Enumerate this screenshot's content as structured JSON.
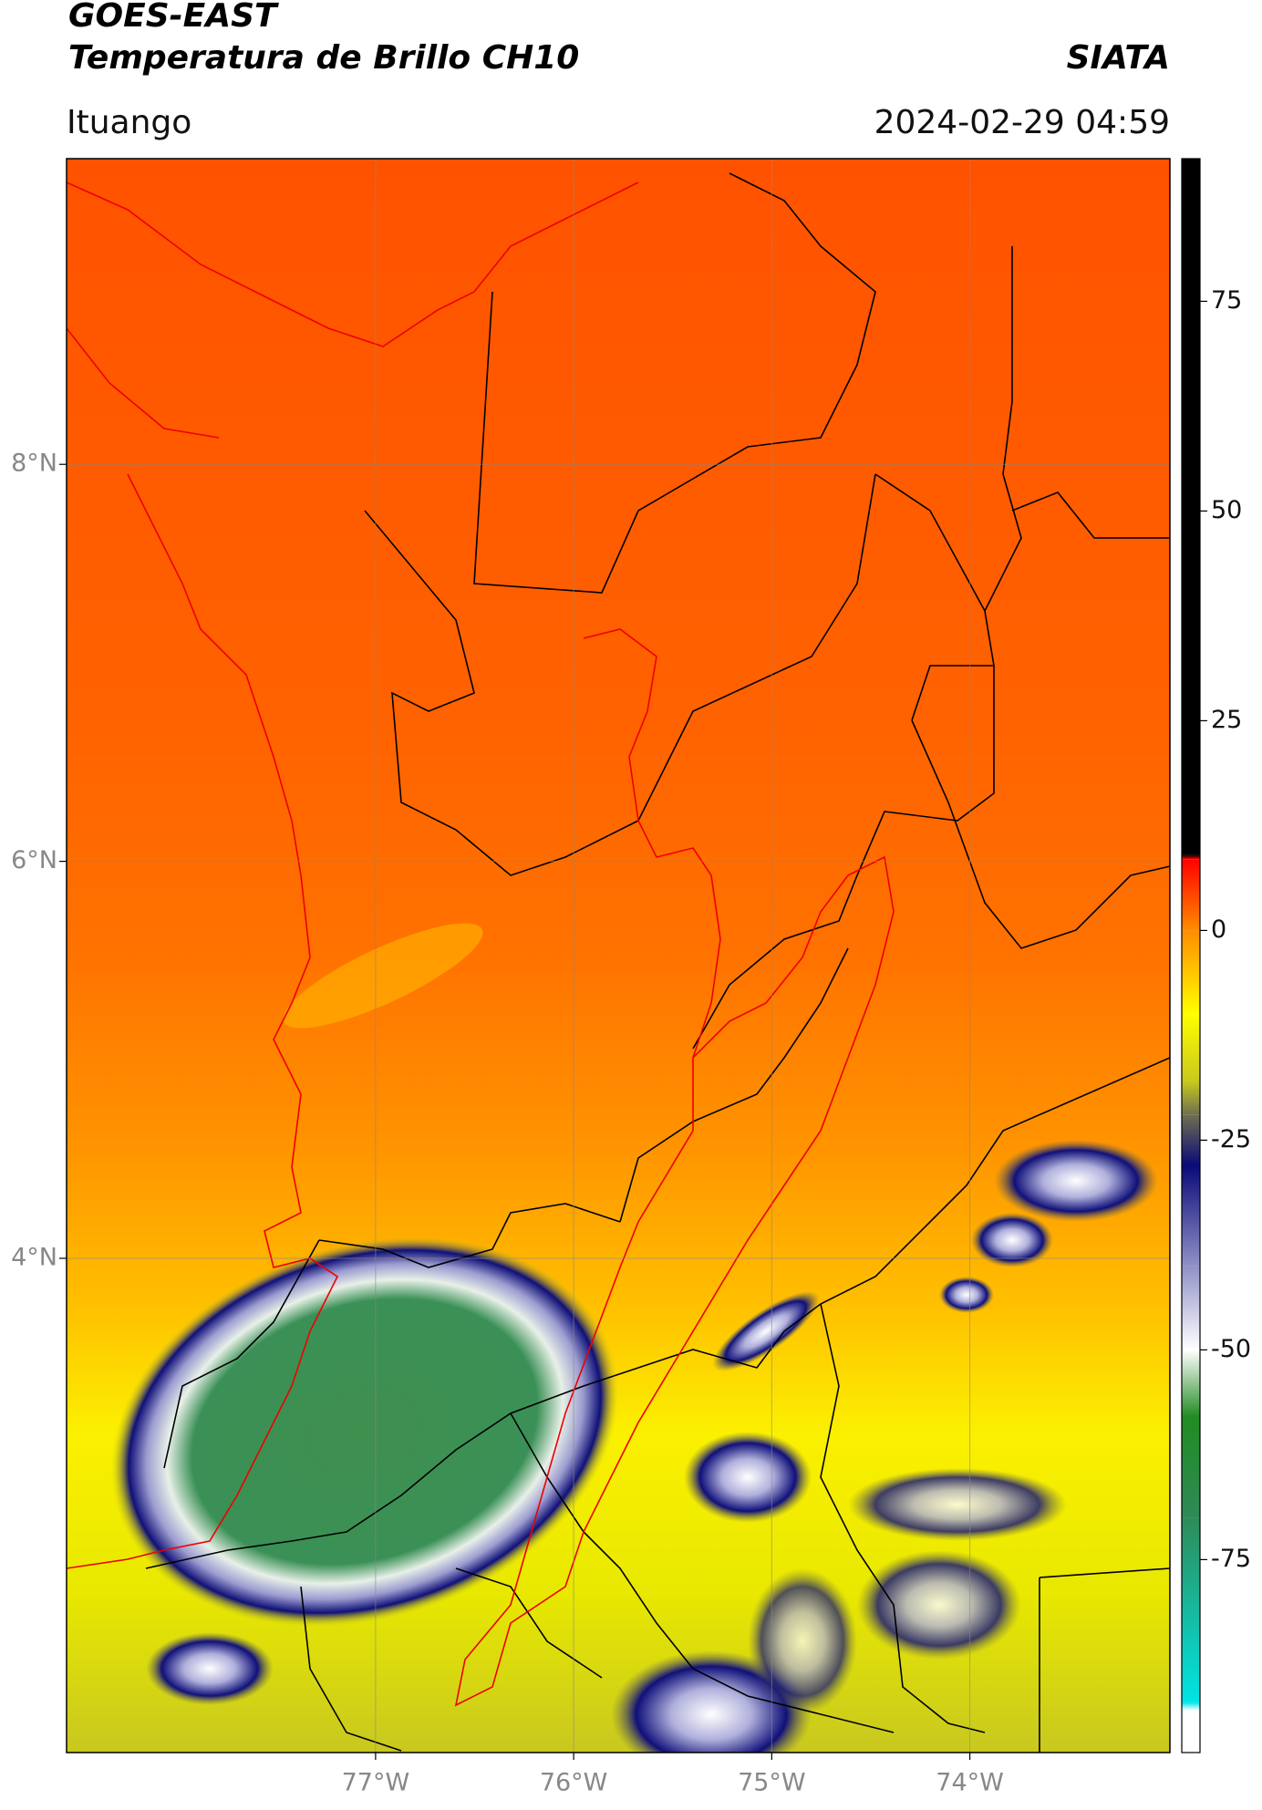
{
  "chart_data": {
    "type": "map",
    "title": "GOES-EAST",
    "subtitle": "Temperatura de Brillo CH10",
    "source": "SIATA",
    "location": "Ituango",
    "timestamp": "2024-02-29 04:59",
    "xlim": [
      -78.56,
      -72.99
    ],
    "ylim": [
      1.51,
      9.54
    ],
    "xticks": [
      {
        "value": -77,
        "label": "77°W"
      },
      {
        "value": -76,
        "label": "76°W"
      },
      {
        "value": -75,
        "label": "75°W"
      },
      {
        "value": -74,
        "label": "74°W"
      }
    ],
    "yticks": [
      {
        "value": 4,
        "label": "4°N"
      },
      {
        "value": 6,
        "label": "6°N"
      },
      {
        "value": 8,
        "label": "8°N"
      }
    ],
    "grid": true,
    "colorbar": {
      "clim": [
        -98,
        92
      ],
      "ticks": [
        -75,
        -50,
        -25,
        0,
        25,
        50,
        75
      ],
      "stops": [
        {
          "value": 92,
          "color": "#000000"
        },
        {
          "value": 9,
          "color": "#000000"
        },
        {
          "value": 8.5,
          "color": "#ff0000"
        },
        {
          "value": 0,
          "color": "#ff8c00"
        },
        {
          "value": -10,
          "color": "#ffff00"
        },
        {
          "value": -18,
          "color": "#c8c81e"
        },
        {
          "value": -22,
          "color": "#6e6e50"
        },
        {
          "value": -28,
          "color": "#0a0a78"
        },
        {
          "value": -40,
          "color": "#9090c8"
        },
        {
          "value": -50,
          "color": "#ffffff"
        },
        {
          "value": -58,
          "color": "#228b22"
        },
        {
          "value": -70,
          "color": "#2e8b57"
        },
        {
          "value": -92,
          "color": "#00e5e5"
        },
        {
          "value": -93,
          "color": "#ffffff"
        },
        {
          "value": -98,
          "color": "#ffffff"
        }
      ]
    }
  }
}
